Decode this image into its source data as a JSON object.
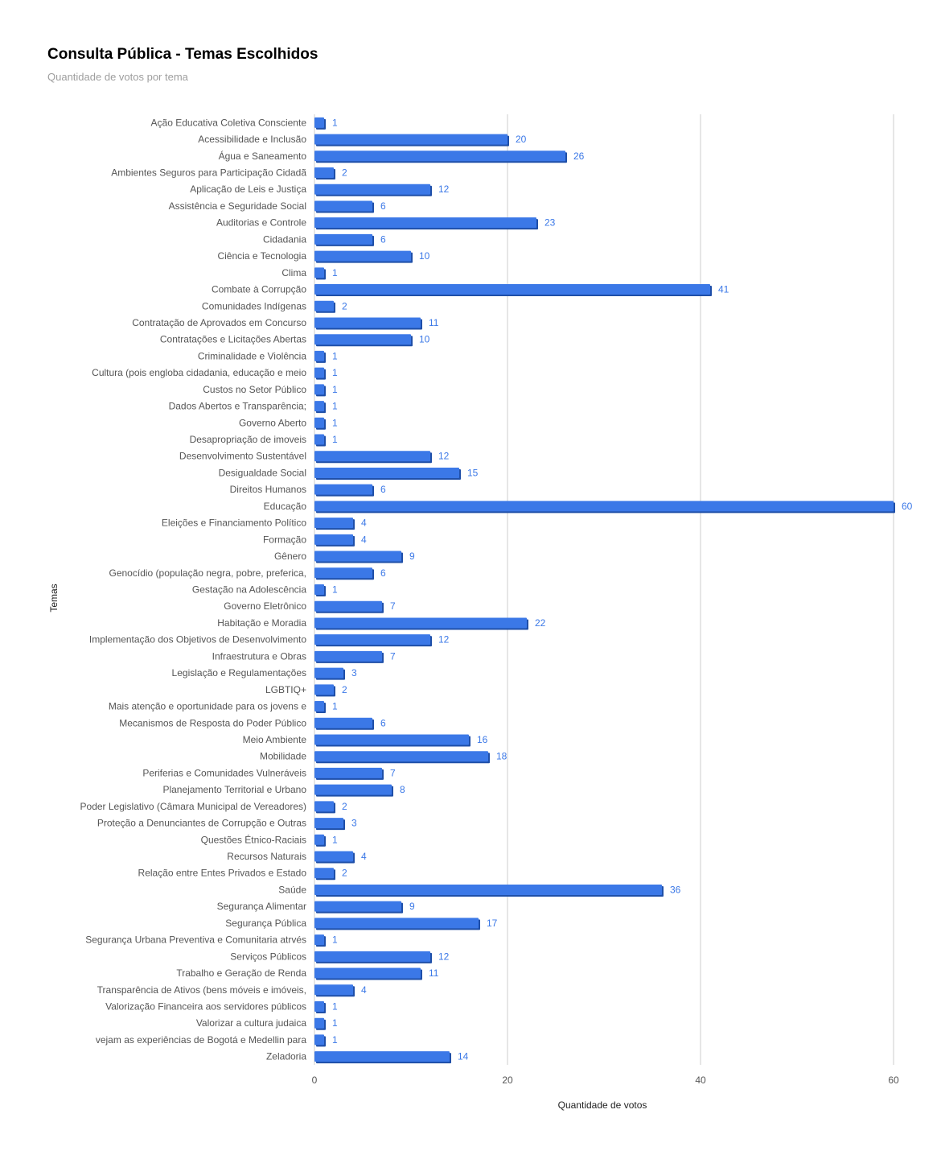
{
  "chart_data": {
    "type": "bar",
    "orientation": "horizontal",
    "title": "Consulta Pública - Temas Escolhidos",
    "subtitle": "Quantidade de votos por tema",
    "xlabel": "Quantidade de votos",
    "ylabel": "Temas",
    "xlim": [
      0,
      60
    ],
    "xticks": [
      0,
      20,
      40,
      60
    ],
    "grid": true,
    "legend": "none",
    "colors": {
      "bar": "#3b78e7",
      "bar_shadow": "#1f4fa8",
      "value_label": "#3b78e7",
      "grid": "#cccccc"
    },
    "categories": [
      "Ação Educativa Coletiva Consciente",
      "Acessibilidade e Inclusão",
      "Água e Saneamento",
      "Ambientes Seguros para Participação Cidadã",
      "Aplicação de Leis e Justiça",
      "Assistência e Seguridade Social",
      "Auditorias e Controle",
      "Cidadania",
      "Ciência e Tecnologia",
      "Clima",
      "Combate à Corrupção",
      "Comunidades Indígenas",
      "Contratação de Aprovados em Concurso",
      "Contratações e Licitações Abertas",
      "Criminalidade e Violência",
      "Cultura (pois engloba cidadania, educação e meio",
      "Custos no Setor Público",
      "Dados Abertos e Transparência;",
      "Governo Aberto",
      "Desapropriação de imoveis",
      "Desenvolvimento Sustentável",
      "Desigualdade Social",
      "Direitos Humanos",
      "Educação",
      "Eleições e Financiamento Político",
      "Formação",
      "Gênero",
      "Genocídio (população negra, pobre, preferica,",
      "Gestação na Adolescência",
      "Governo Eletrônico",
      "Habitação e Moradia",
      "Implementação dos Objetivos de Desenvolvimento",
      "Infraestrutura e Obras",
      "Legislação e Regulamentações",
      "LGBTIQ+",
      "Mais atenção e oportunidade para os jovens e",
      "Mecanismos de Resposta do Poder Público",
      "Meio Ambiente",
      "Mobilidade",
      "Periferias e Comunidades Vulneráveis",
      "Planejamento Territorial e Urbano",
      "Poder Legislativo (Câmara Municipal de Vereadores)",
      "Proteção a Denunciantes de Corrupção e Outras",
      "Questões Étnico-Raciais",
      "Recursos Naturais",
      "Relação entre Entes Privados e Estado",
      "Saúde",
      "Segurança Alimentar",
      "Segurança Pública",
      "Segurança Urbana Preventiva e Comunitaria atrvés",
      "Serviços Públicos",
      "Trabalho e Geração de Renda",
      "Transparência de Ativos (bens móveis e imóveis,",
      "Valorização Financeira aos servidores públicos",
      "Valorizar a cultura judaica",
      "vejam as experiências de Bogotá e Medellin para",
      "Zeladoria"
    ],
    "values": [
      1,
      20,
      26,
      2,
      12,
      6,
      23,
      6,
      10,
      1,
      41,
      2,
      11,
      10,
      1,
      1,
      1,
      1,
      1,
      1,
      12,
      15,
      6,
      60,
      4,
      4,
      9,
      6,
      1,
      7,
      22,
      12,
      7,
      3,
      2,
      1,
      6,
      16,
      18,
      7,
      8,
      2,
      3,
      1,
      4,
      2,
      36,
      9,
      17,
      1,
      12,
      11,
      4,
      1,
      1,
      1,
      14
    ]
  }
}
